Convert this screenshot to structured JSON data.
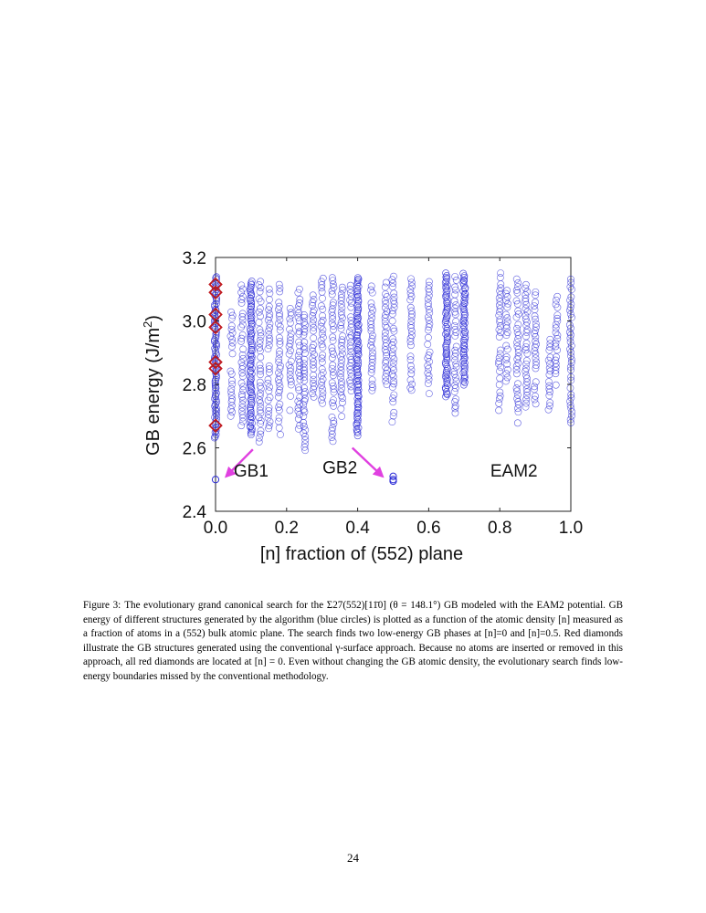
{
  "figure": {
    "chart_data": {
      "type": "scatter",
      "xlabel": "[n] fraction of (552) plane",
      "ylabel_main": "GB energy (J/m",
      "ylabel_sup": "2",
      "ylabel_close": ")",
      "xlim": [
        0.0,
        1.0
      ],
      "ylim": [
        2.4,
        3.2
      ],
      "xticks": [
        "0.0",
        "0.2",
        "0.4",
        "0.6",
        "0.8",
        "1.0"
      ],
      "yticks": [
        "2.4",
        "2.6",
        "2.8",
        "3.0",
        "3.2"
      ],
      "grid": false,
      "series": [
        {
          "marker": "open-circle",
          "color": "#2b2bd6",
          "columns": [
            {
              "x": 0.0,
              "ymin": 2.63,
              "ymax": 3.14,
              "dense": true
            },
            {
              "x": 0.045,
              "ymin": 2.7,
              "ymax": 3.04
            },
            {
              "x": 0.075,
              "ymin": 2.66,
              "ymax": 3.12
            },
            {
              "x": 0.1,
              "ymin": 2.64,
              "ymax": 3.13,
              "dense": true
            },
            {
              "x": 0.125,
              "ymin": 2.62,
              "ymax": 3.13
            },
            {
              "x": 0.15,
              "ymin": 2.66,
              "ymax": 3.1
            },
            {
              "x": 0.18,
              "ymin": 2.64,
              "ymax": 3.12
            },
            {
              "x": 0.21,
              "ymin": 2.72,
              "ymax": 3.06
            },
            {
              "x": 0.235,
              "ymin": 2.66,
              "ymax": 3.1
            },
            {
              "x": 0.25,
              "ymin": 2.58,
              "ymax": 3.02
            },
            {
              "x": 0.275,
              "ymin": 2.75,
              "ymax": 3.08
            },
            {
              "x": 0.3,
              "ymin": 2.74,
              "ymax": 3.14
            },
            {
              "x": 0.33,
              "ymin": 2.62,
              "ymax": 3.14
            },
            {
              "x": 0.355,
              "ymin": 2.7,
              "ymax": 3.11
            },
            {
              "x": 0.38,
              "ymin": 2.78,
              "ymax": 3.12
            },
            {
              "x": 0.4,
              "ymin": 2.64,
              "ymax": 3.14,
              "dense": true
            },
            {
              "x": 0.44,
              "ymin": 2.78,
              "ymax": 3.12
            },
            {
              "x": 0.48,
              "ymin": 2.8,
              "ymax": 3.12
            },
            {
              "x": 0.5,
              "ymin": 2.68,
              "ymax": 3.15
            },
            {
              "x": 0.55,
              "ymin": 2.78,
              "ymax": 3.14
            },
            {
              "x": 0.6,
              "ymin": 2.76,
              "ymax": 3.13
            },
            {
              "x": 0.65,
              "ymin": 2.76,
              "ymax": 3.15,
              "dense": true
            },
            {
              "x": 0.675,
              "ymin": 2.7,
              "ymax": 3.14
            },
            {
              "x": 0.7,
              "ymin": 2.8,
              "ymax": 3.15,
              "dense": true
            },
            {
              "x": 0.8,
              "ymin": 2.72,
              "ymax": 3.15
            },
            {
              "x": 0.82,
              "ymin": 2.8,
              "ymax": 3.1
            },
            {
              "x": 0.85,
              "ymin": 2.68,
              "ymax": 3.14
            },
            {
              "x": 0.875,
              "ymin": 2.72,
              "ymax": 3.12
            },
            {
              "x": 0.9,
              "ymin": 2.74,
              "ymax": 3.1
            },
            {
              "x": 0.94,
              "ymin": 2.72,
              "ymax": 2.96
            },
            {
              "x": 0.96,
              "ymin": 2.8,
              "ymax": 3.08
            },
            {
              "x": 1.0,
              "ymin": 2.68,
              "ymax": 3.14
            }
          ],
          "outliers": [
            {
              "x": 0.0,
              "y": 2.5
            },
            {
              "x": 0.5,
              "y": 2.51
            },
            {
              "x": 0.5,
              "y": 2.5
            },
            {
              "x": 0.5,
              "y": 2.495
            }
          ]
        },
        {
          "marker": "open-diamond",
          "color": "#c0191e",
          "points": [
            {
              "x": 0.0,
              "y": 3.115
            },
            {
              "x": 0.0,
              "y": 3.09
            },
            {
              "x": 0.0,
              "y": 3.02
            },
            {
              "x": 0.0,
              "y": 2.98
            },
            {
              "x": 0.0,
              "y": 2.87
            },
            {
              "x": 0.0,
              "y": 2.85
            },
            {
              "x": 0.0,
              "y": 2.67
            }
          ]
        }
      ],
      "annotations": [
        {
          "text": "GB1",
          "x": 0.1,
          "y": 2.51
        },
        {
          "text": "GB2",
          "x": 0.35,
          "y": 2.52
        },
        {
          "text": "EAM2",
          "x": 0.84,
          "y": 2.51
        }
      ],
      "arrows": [
        {
          "from": [
            0.105,
            2.595
          ],
          "to": [
            0.03,
            2.51
          ]
        },
        {
          "from": [
            0.385,
            2.6
          ],
          "to": [
            0.47,
            2.51
          ]
        }
      ],
      "arrow_color": "#e040e0"
    }
  },
  "caption": {
    "label": "Figure 3:",
    "text": "The evolutionary grand canonical search for the Σ27(552)[11̄0] (θ = 148.1°) GB modeled with the EAM2 potential. GB energy of different structures generated by the algorithm (blue circles) is plotted as a function of the atomic density [n] measured as a fraction of atoms in a (552) bulk atomic plane. The search finds two low-energy GB phases at [n]=0 and [n]=0.5. Red diamonds illustrate the GB structures generated using the conventional γ-surface approach. Because no atoms are inserted or removed in this approach, all red diamonds are located at [n] = 0. Even without changing the GB atomic density, the evolutionary search finds low-energy boundaries missed by the conventional methodology."
  },
  "page_number": "24"
}
